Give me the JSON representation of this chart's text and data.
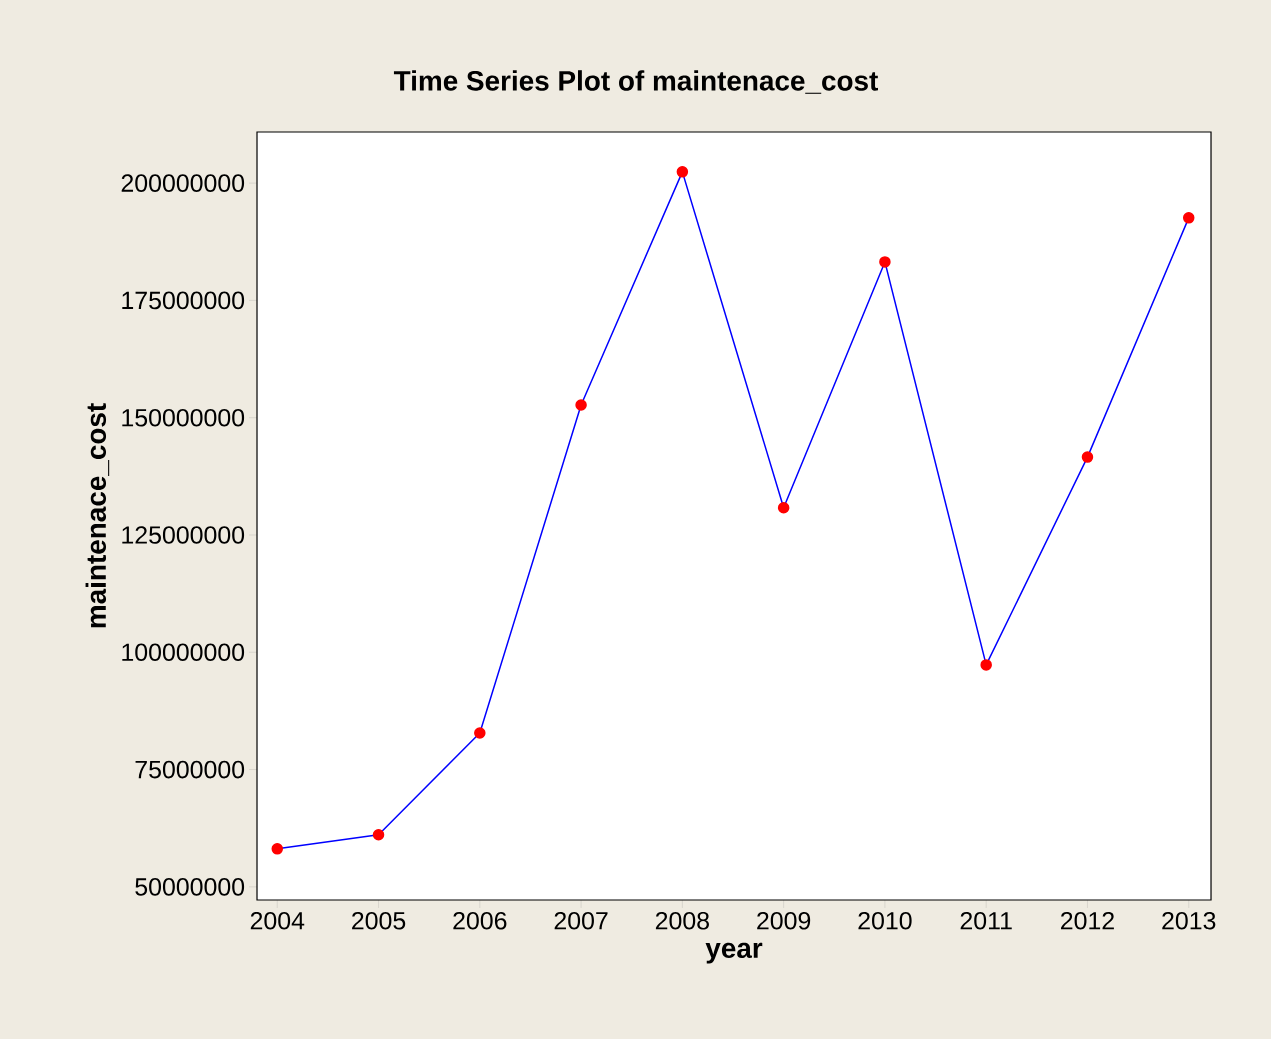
{
  "chart_data": {
    "type": "line",
    "title": "Time Series Plot of maintenace_cost",
    "xlabel": "year",
    "ylabel": "maintenace_cost",
    "x": [
      2004,
      2005,
      2006,
      2007,
      2008,
      2009,
      2010,
      2011,
      2012,
      2013
    ],
    "series": [
      {
        "color": "#0000ff",
        "values": [
          58100000,
          61100000,
          82800000,
          152700000,
          202400000,
          130800000,
          183200000,
          97300000,
          141600000,
          192600000
        ]
      }
    ],
    "xlim": [
      2003.8,
      2013.22
    ],
    "xticks": [
      2004,
      2005,
      2006,
      2007,
      2008,
      2009,
      2010,
      2011,
      2012,
      2013
    ],
    "ylim": [
      47200000,
      210900000
    ],
    "yticks": [
      50000000,
      75000000,
      100000000,
      125000000,
      150000000,
      175000000,
      200000000
    ],
    "grid": false,
    "marker": "circle",
    "line_style": "solid"
  }
}
